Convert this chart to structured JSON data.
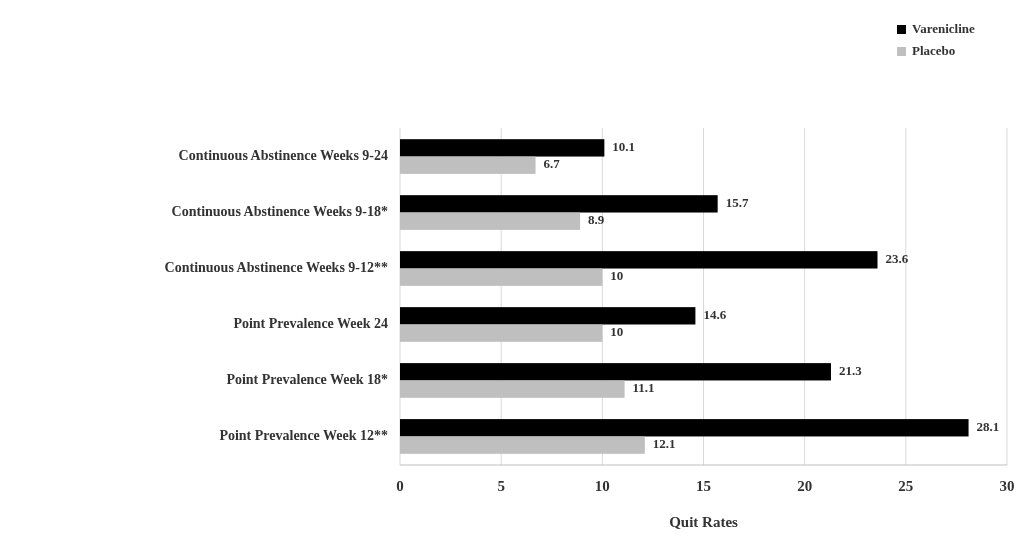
{
  "chart_data": {
    "type": "bar",
    "orientation": "horizontal",
    "xlabel": "Quit Rates",
    "categories": [
      "Continuous Abstinence Weeks 9-24",
      "Continuous Abstinence Weeks 9-18*",
      "Continuous Abstinence Weeks 9-12**",
      "Point Prevalence Week 24",
      "Point Prevalence Week 18*",
      "Point Prevalence Week 12**"
    ],
    "series": [
      {
        "name": "Varenicline",
        "color": "#000000",
        "values": [
          10.1,
          15.7,
          23.6,
          14.6,
          21.3,
          28.1
        ]
      },
      {
        "name": "Placebo",
        "color": "#bfbfbf",
        "values": [
          6.7,
          8.9,
          10,
          10,
          11.1,
          12.1
        ]
      }
    ],
    "xlim": [
      0,
      30
    ],
    "xticks": [
      0,
      5,
      10,
      15,
      20,
      25,
      30
    ],
    "grid": "x",
    "legend": "top right",
    "data_labels": true
  }
}
